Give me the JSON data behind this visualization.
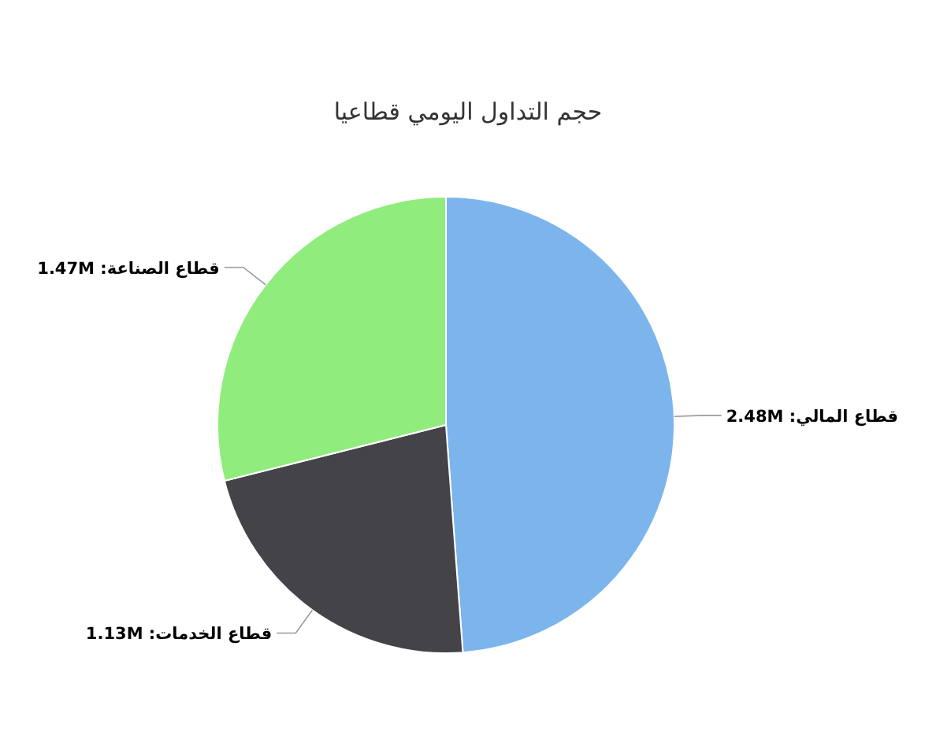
{
  "chart_data": {
    "type": "pie",
    "title": "حجم التداول اليومي قطاعيا",
    "categories": [
      "قطاع المالي",
      "قطاع الخدمات",
      "قطاع الصناعة"
    ],
    "values": [
      2.48,
      1.13,
      1.47
    ],
    "value_labels": [
      "2.48M",
      "1.13M",
      "1.47M"
    ],
    "colors": [
      "#7cb5ec",
      "#434348",
      "#90ed7d"
    ]
  }
}
